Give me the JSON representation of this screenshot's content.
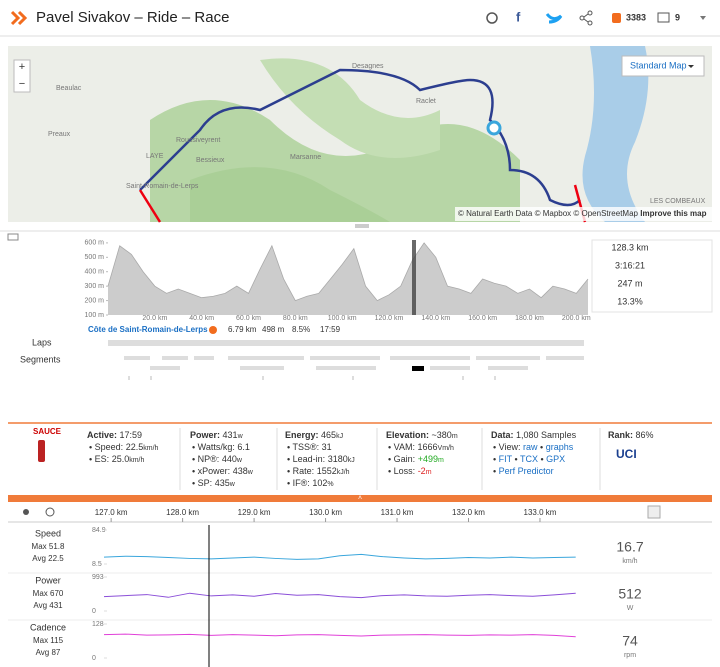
{
  "header": {
    "title": "Pavel Sivakov – Ride – Race",
    "likes": "3383",
    "comments": "9"
  },
  "map": {
    "zoom_in": "+",
    "zoom_out": "−",
    "style": "Standard Map",
    "places": [
      "Desagnes",
      "Beaulac",
      "Preaux",
      "Roussiveyrent",
      "LAYE",
      "Bessieux",
      "Marsanne",
      "Saint-Romain-de-Lerps",
      "Raclet",
      "LES COMBEAUX"
    ],
    "attribution": "© Natural Earth Data © Mapbox © OpenStreetMap",
    "improve": "Improve this map"
  },
  "profile_stats": [
    "128.3 km",
    "3:16:21",
    "247 m",
    "13.3%"
  ],
  "segment": {
    "name": "Côte de Saint-Romain-de-Lerps",
    "distance": "6.79 km",
    "elevation": "498 m",
    "grade": "8.5%",
    "time": "17:59"
  },
  "rows": {
    "laps": "Laps",
    "segments": "Segments"
  },
  "stats": {
    "brand": "SAUCE",
    "columns": [
      {
        "label": "Active:",
        "value": "17:59",
        "items": [
          {
            "label": "Speed:",
            "value": "22.5",
            "unit": "km/h"
          },
          {
            "label": "ES:",
            "value": "25.0",
            "unit": "km/h"
          }
        ]
      },
      {
        "label": "Power:",
        "value": "431",
        "unit": "w",
        "items": [
          {
            "label": "Watts/kg:",
            "value": "6.1"
          },
          {
            "label": "NP®:",
            "value": "440",
            "unit": "w"
          },
          {
            "label": "xPower:",
            "value": "438",
            "unit": "w"
          },
          {
            "label": "SP:",
            "value": "435",
            "unit": "w"
          }
        ]
      },
      {
        "label": "Energy:",
        "value": "465",
        "unit": "kJ",
        "items": [
          {
            "label": "TSS®:",
            "value": "31"
          },
          {
            "label": "Lead-in:",
            "value": "3180",
            "unit": "kJ"
          },
          {
            "label": "Rate:",
            "value": "1552",
            "unit": "kJ/h"
          },
          {
            "label": "IF®:",
            "value": "102",
            "unit": "%"
          }
        ]
      },
      {
        "label": "Elevation:",
        "value": "~380",
        "unit": "m",
        "items": [
          {
            "label": "VAM:",
            "value": "1666",
            "unit": "Vm/h"
          },
          {
            "label": "Gain:",
            "value": "+499",
            "unit": "m"
          },
          {
            "label": "Loss:",
            "value": "-2",
            "unit": "m"
          }
        ]
      },
      {
        "label": "Data:",
        "value": "1,080 Samples",
        "items": [
          {
            "label": "View:",
            "links": [
              "raw",
              "graphs"
            ]
          },
          {
            "links": [
              "FIT",
              "TCX",
              "GPX"
            ]
          },
          {
            "links": [
              "Perf Predictor"
            ]
          }
        ]
      },
      {
        "label": "Rank:",
        "value": "86%",
        "items": []
      }
    ]
  },
  "chart_data": [
    {
      "type": "area",
      "color": "#cccccc",
      "x": [
        0,
        5,
        10,
        15,
        20,
        25,
        30,
        35,
        40,
        45,
        50,
        55,
        60,
        65,
        70,
        75,
        80,
        85,
        90,
        95,
        100,
        105,
        110,
        115,
        120,
        125,
        130,
        135,
        140,
        145,
        150,
        155,
        160,
        165,
        170,
        175,
        180,
        185,
        190,
        195,
        200,
        205
      ],
      "values": [
        300,
        580,
        520,
        400,
        300,
        250,
        280,
        250,
        220,
        230,
        250,
        300,
        250,
        420,
        580,
        350,
        200,
        230,
        250,
        350,
        450,
        560,
        300,
        200,
        240,
        300,
        480,
        600,
        500,
        300,
        280,
        250,
        350,
        320,
        300,
        250,
        280,
        220,
        300,
        280,
        250,
        350
      ],
      "xlim": [
        0,
        205
      ],
      "ylim": [
        100,
        620
      ],
      "xticks": [
        {
          "value": 20,
          "label": "20.0 km"
        },
        {
          "value": 40,
          "label": "40.0 km"
        },
        {
          "value": 60,
          "label": "60.0 km"
        },
        {
          "value": 80,
          "label": "80.0 km"
        },
        {
          "value": 100,
          "label": "100.0 km"
        },
        {
          "value": 120,
          "label": "120.0 km"
        },
        {
          "value": 140,
          "label": "140.0 km"
        },
        {
          "value": 160,
          "label": "160.0 km"
        },
        {
          "value": 180,
          "label": "180.0 km"
        },
        {
          "value": 200,
          "label": "200.0 km"
        }
      ],
      "yticks": [
        {
          "value": 600,
          "label": "600 m"
        },
        {
          "value": 500,
          "label": "500 m"
        },
        {
          "value": 400,
          "label": "400 m"
        },
        {
          "value": 300,
          "label": "300 m"
        },
        {
          "value": 200,
          "label": "200 m"
        },
        {
          "value": 100,
          "label": "100 m"
        }
      ]
    },
    {
      "type": "line",
      "title": "Speed",
      "max": "Max 51.8",
      "avg": "Avg 22.5",
      "current": "16.7",
      "unit": "km/h",
      "color": "#3aa6dc",
      "x": [
        126.9,
        127.2,
        127.5,
        127.8,
        128.1,
        128.4,
        128.7,
        129.0,
        129.3,
        129.6,
        129.9,
        130.2,
        130.5,
        130.8,
        131.1,
        131.4,
        131.7,
        132.0,
        132.3,
        132.6,
        132.9,
        133.2,
        133.5
      ],
      "values": [
        24,
        26,
        25,
        23,
        21,
        20,
        22,
        24,
        21,
        19,
        20,
        27,
        30,
        25,
        22,
        20,
        21,
        23,
        22,
        24,
        22,
        23,
        24
      ],
      "xlim": [
        126.9,
        133.7
      ],
      "ylim": [
        8.5,
        84.9
      ],
      "yticks": [
        8.5,
        84.9
      ],
      "xticks": [
        {
          "value": 127,
          "label": "127.0 km"
        },
        {
          "value": 128,
          "label": "128.0 km"
        },
        {
          "value": 129,
          "label": "129.0 km"
        },
        {
          "value": 130,
          "label": "130.0 km"
        },
        {
          "value": 131,
          "label": "131.0 km"
        },
        {
          "value": 132,
          "label": "132.0 km"
        },
        {
          "value": 133,
          "label": "133.0 km"
        }
      ]
    },
    {
      "type": "line",
      "title": "Power",
      "max": "Max 670",
      "avg": "Avg 431",
      "current": "512",
      "unit": "W",
      "color": "#8b4fd8",
      "x": [
        126.9,
        127.2,
        127.5,
        127.8,
        128.1,
        128.4,
        128.7,
        129.0,
        129.3,
        129.6,
        129.9,
        130.2,
        130.5,
        130.8,
        131.1,
        131.4,
        131.7,
        132.0,
        132.3,
        132.6,
        132.9,
        133.2,
        133.5
      ],
      "values": [
        420,
        450,
        480,
        400,
        520,
        440,
        470,
        430,
        510,
        460,
        480,
        420,
        390,
        450,
        470,
        440,
        430,
        460,
        480,
        450,
        430,
        470,
        520
      ],
      "xlim": [
        126.9,
        133.7
      ],
      "ylim": [
        0,
        993
      ],
      "yticks": [
        0,
        993
      ]
    },
    {
      "type": "line",
      "title": "Cadence",
      "max": "Max 115",
      "avg": "Avg 87",
      "current": "74",
      "unit": "rpm",
      "color": "#e040d8",
      "x": [
        126.9,
        127.2,
        127.5,
        127.8,
        128.1,
        128.4,
        128.7,
        129.0,
        129.3,
        129.6,
        129.9,
        130.2,
        130.5,
        130.8,
        131.1,
        131.4,
        131.7,
        132.0,
        132.3,
        132.6,
        132.9,
        133.2,
        133.5
      ],
      "values": [
        88,
        90,
        86,
        87,
        89,
        85,
        88,
        86,
        84,
        87,
        88,
        85,
        83,
        86,
        87,
        88,
        86,
        85,
        87,
        86,
        88,
        85,
        80
      ],
      "xlim": [
        126.9,
        133.7
      ],
      "ylim": [
        0,
        128
      ],
      "yticks": [
        0,
        128
      ]
    }
  ]
}
